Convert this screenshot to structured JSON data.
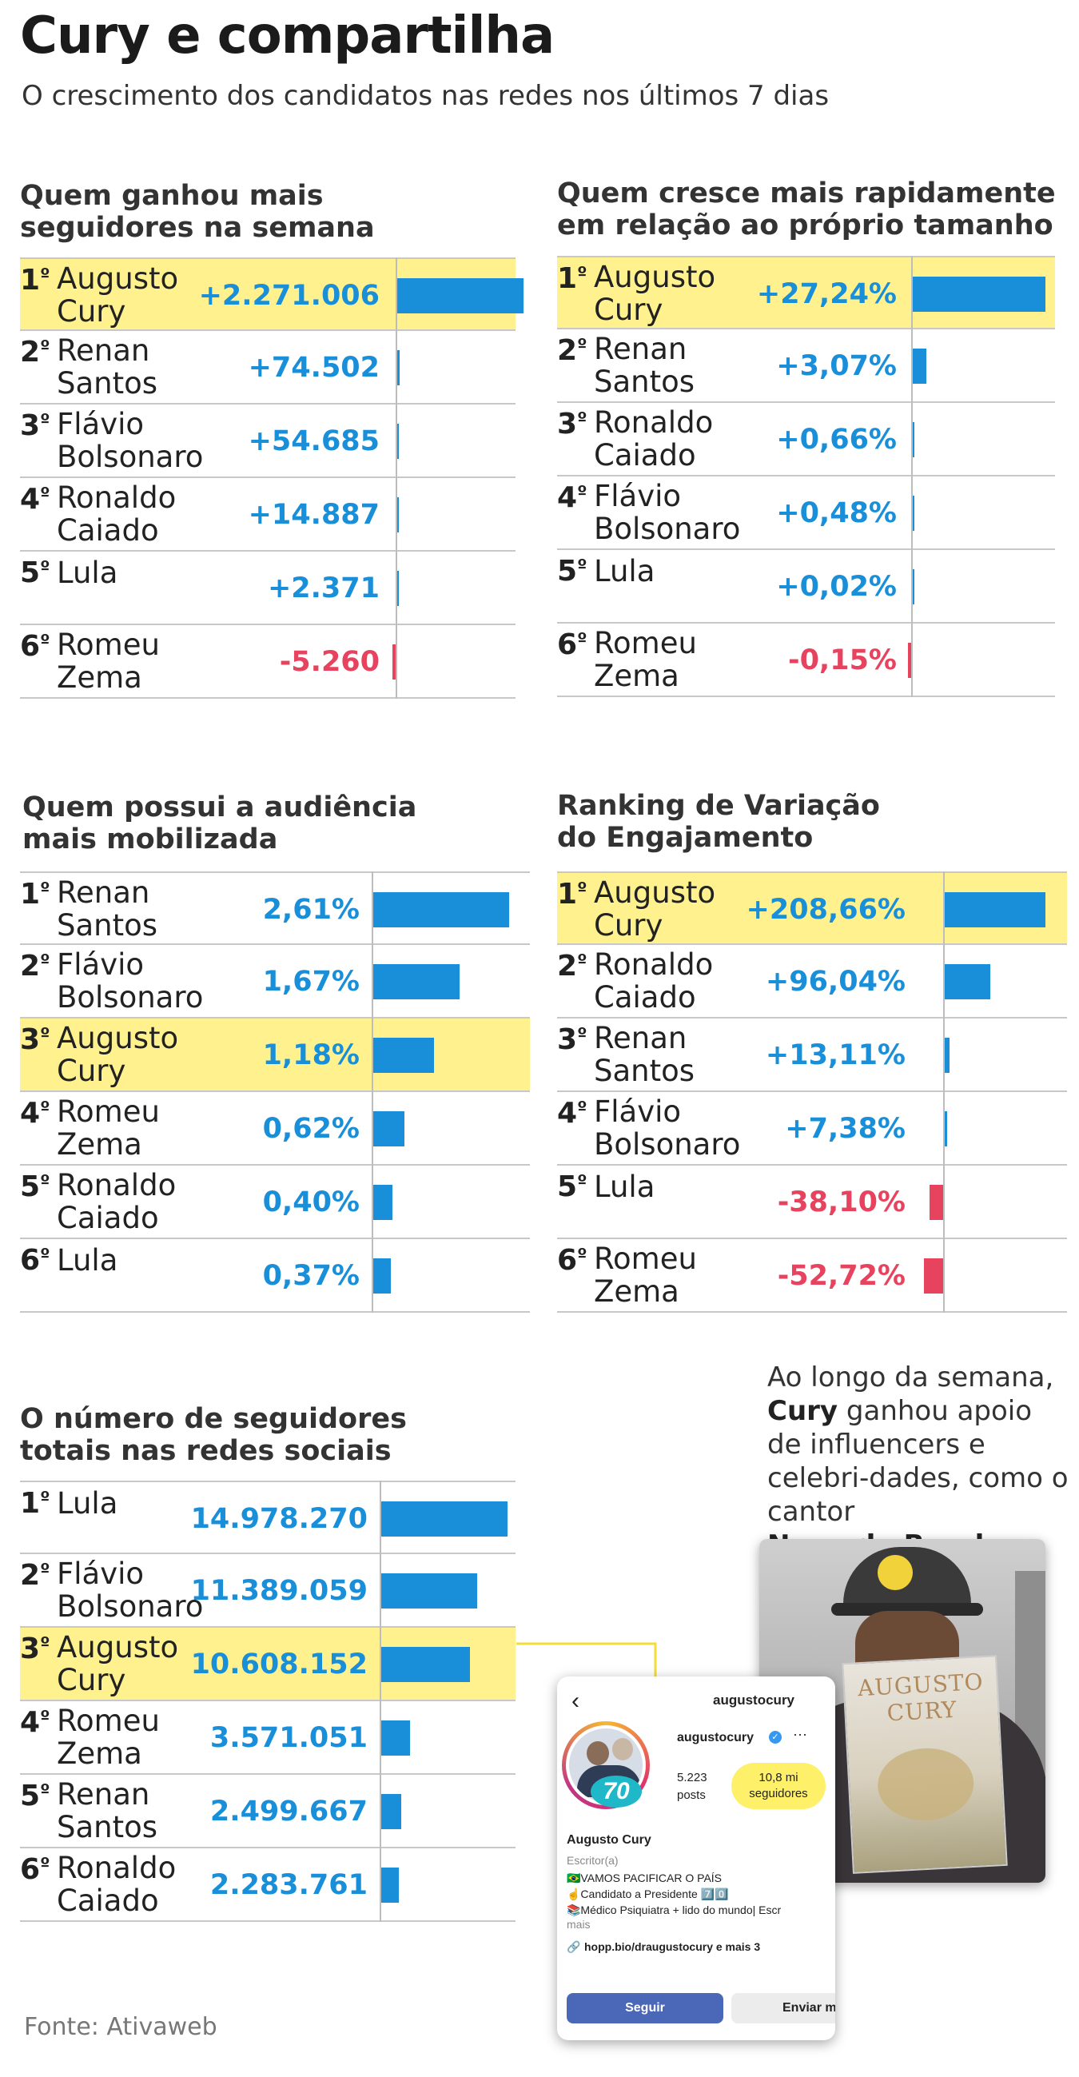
{
  "title": "Cury e compartilha",
  "subtitle": "O crescimento dos candidatos nas redes nos últimos 7 dias",
  "source": "Fonte: Ativaweb",
  "colors": {
    "positive": "#1a8fd9",
    "negative": "#e8435e",
    "highlight": "#fff28e"
  },
  "chart_data": [
    {
      "type": "bar",
      "title": "Quem ganhou mais\nseguidores na semana",
      "rows": [
        {
          "rank": "1",
          "name": "Augusto\nCury",
          "value": 2271006,
          "label": "+2.271.006",
          "highlight": true
        },
        {
          "rank": "2",
          "name": "Renan\nSantos",
          "value": 74502,
          "label": "+74.502",
          "highlight": false
        },
        {
          "rank": "3",
          "name": "Flávio\nBolsonaro",
          "value": 54685,
          "label": "+54.685",
          "highlight": false
        },
        {
          "rank": "4",
          "name": "Ronaldo\nCaiado",
          "value": 14887,
          "label": "+14.887",
          "highlight": false
        },
        {
          "rank": "5",
          "name": "Lula",
          "value": 2371,
          "label": "+2.371",
          "highlight": false
        },
        {
          "rank": "6",
          "name": "Romeu\nZema",
          "value": -5260,
          "label": "-5.260",
          "highlight": false
        }
      ]
    },
    {
      "type": "bar",
      "title": "Quem cresce mais rapidamente\nem relação ao próprio tamanho",
      "rows": [
        {
          "rank": "1",
          "name": "Augusto\nCury",
          "value": 27.24,
          "label": "+27,24%",
          "highlight": true
        },
        {
          "rank": "2",
          "name": "Renan\nSantos",
          "value": 3.07,
          "label": "+3,07%",
          "highlight": false
        },
        {
          "rank": "3",
          "name": "Ronaldo\nCaiado",
          "value": 0.66,
          "label": "+0,66%",
          "highlight": false
        },
        {
          "rank": "4",
          "name": "Flávio\nBolsonaro",
          "value": 0.48,
          "label": "+0,48%",
          "highlight": false
        },
        {
          "rank": "5",
          "name": "Lula",
          "value": 0.02,
          "label": "+0,02%",
          "highlight": false
        },
        {
          "rank": "6",
          "name": "Romeu\nZema",
          "value": -0.15,
          "label": "-0,15%",
          "highlight": false
        }
      ]
    },
    {
      "type": "bar",
      "title": "Quem possui a audiência\nmais mobilizada",
      "rows": [
        {
          "rank": "1",
          "name": "Renan\nSantos",
          "value": 2.61,
          "label": "2,61%",
          "highlight": false
        },
        {
          "rank": "2",
          "name": "Flávio\nBolsonaro",
          "value": 1.67,
          "label": "1,67%",
          "highlight": false
        },
        {
          "rank": "3",
          "name": "Augusto\nCury",
          "value": 1.18,
          "label": "1,18%",
          "highlight": true
        },
        {
          "rank": "4",
          "name": "Romeu\nZema",
          "value": 0.62,
          "label": "0,62%",
          "highlight": false
        },
        {
          "rank": "5",
          "name": "Ronaldo\nCaiado",
          "value": 0.4,
          "label": "0,40%",
          "highlight": false
        },
        {
          "rank": "6",
          "name": "Lula",
          "value": 0.37,
          "label": "0,37%",
          "highlight": false
        }
      ]
    },
    {
      "type": "bar",
      "title": "Ranking de Variação\ndo Engajamento",
      "rows": [
        {
          "rank": "1",
          "name": "Augusto\nCury",
          "value": 208.66,
          "label": "+208,66%",
          "highlight": true
        },
        {
          "rank": "2",
          "name": "Ronaldo\nCaiado",
          "value": 96.04,
          "label": "+96,04%",
          "highlight": false
        },
        {
          "rank": "3",
          "name": "Renan\nSantos",
          "value": 13.11,
          "label": "+13,11%",
          "highlight": false
        },
        {
          "rank": "4",
          "name": "Flávio\nBolsonaro",
          "value": 7.38,
          "label": "+7,38%",
          "highlight": false
        },
        {
          "rank": "5",
          "name": "Lula",
          "value": -38.1,
          "label": "-38,10%",
          "highlight": false
        },
        {
          "rank": "6",
          "name": "Romeu\nZema",
          "value": -52.72,
          "label": "-52,72%",
          "highlight": false
        }
      ]
    },
    {
      "type": "bar",
      "title": "O número de seguidores\ntotais nas redes sociais",
      "rows": [
        {
          "rank": "1",
          "name": "Lula",
          "value": 14978270,
          "label": "14.978.270",
          "highlight": false
        },
        {
          "rank": "2",
          "name": "Flávio\nBolsonaro",
          "value": 11389059,
          "label": "11.389.059",
          "highlight": false
        },
        {
          "rank": "3",
          "name": "Augusto\nCury",
          "value": 10608152,
          "label": "10.608.152",
          "highlight": true
        },
        {
          "rank": "4",
          "name": "Romeu\nZema",
          "value": 3571051,
          "label": "3.571.051",
          "highlight": false
        },
        {
          "rank": "5",
          "name": "Renan\nSantos",
          "value": 2499667,
          "label": "2.499.667",
          "highlight": false
        },
        {
          "rank": "6",
          "name": "Ronaldo\nCaiado",
          "value": 2283761,
          "label": "2.283.761",
          "highlight": false
        }
      ]
    }
  ],
  "side_note": {
    "line1": "Ao longo da semana,",
    "bold1": "Cury",
    "line2": " ganhou apoio de influencers e celebri-dades, como o cantor",
    "bold2": "Nego do Borel"
  },
  "photo": {
    "cap_icon": "smiley-cap-icon",
    "book_title": "AUGUSTO\nCURY"
  },
  "instagram": {
    "username_header": "augustocury",
    "username": "augustocury",
    "posts_count": "5.223",
    "posts_label": "posts",
    "followers_count": "10,8 mi",
    "followers_label": "seguidores",
    "badge_number": "70",
    "display_name": "Augusto Cury",
    "category": "Escritor(a)",
    "bio1": "🇧🇷VAMOS PACIFICAR O PAÍS",
    "bio2": "☝Candidato a Presidente 7️⃣0️⃣",
    "bio3": "📚Médico Psiquiatra + lido do mundo| Escr",
    "bio_more": "mais",
    "link": "hopp.bio/draugustocury e mais 3",
    "follow_button": "Seguir",
    "message_button": "Enviar m"
  }
}
